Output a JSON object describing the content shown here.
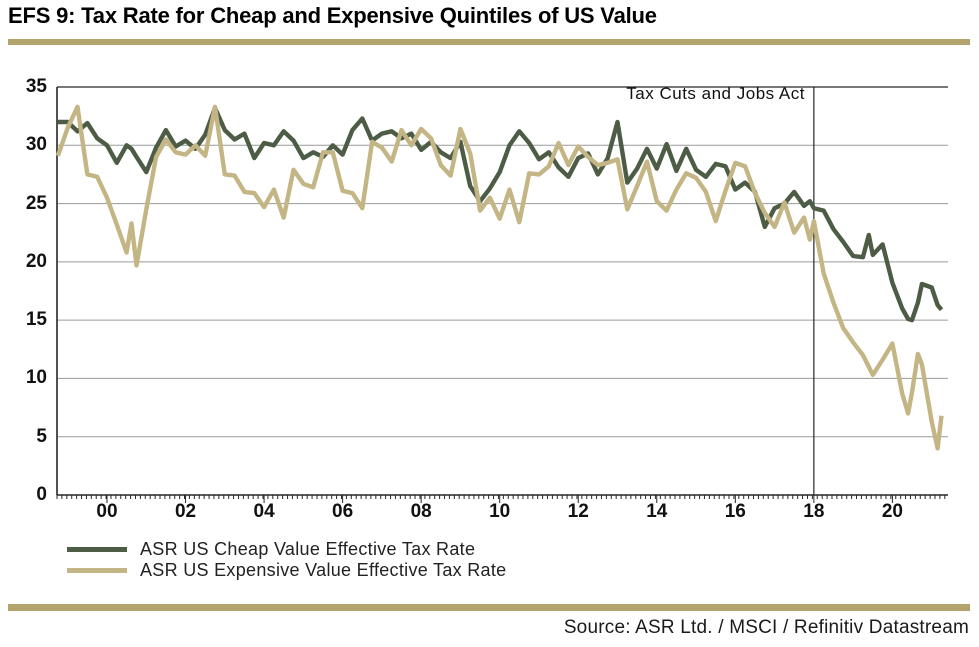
{
  "title": "EFS 9: Tax Rate for Cheap and Expensive Quintiles of US Value",
  "source_line": "Source: ASR Ltd. / MSCI / Refinitiv Datastream",
  "colors": {
    "cheap_line": "#4d5c45",
    "expensive_line": "#c4b585",
    "rule_gold": "#b3a36c",
    "grid": "#9a9a9a",
    "axis": "#262626"
  },
  "chart_data": {
    "type": "line",
    "title": "EFS 9: Tax Rate for Cheap and Expensive Quintiles of US Value",
    "xlabel": "",
    "ylabel": "",
    "ylim": [
      0,
      35
    ],
    "x_range": [
      1998.73,
      2021.45
    ],
    "grid": true,
    "legend_position": "bottom-left",
    "yticks": [
      0,
      5,
      10,
      15,
      20,
      25,
      30,
      35
    ],
    "xticks": [
      {
        "label": "00",
        "year": 2000
      },
      {
        "label": "02",
        "year": 2002
      },
      {
        "label": "04",
        "year": 2004
      },
      {
        "label": "06",
        "year": 2006
      },
      {
        "label": "08",
        "year": 2008
      },
      {
        "label": "10",
        "year": 2010
      },
      {
        "label": "12",
        "year": 2012
      },
      {
        "label": "14",
        "year": 2014
      },
      {
        "label": "16",
        "year": 2016
      },
      {
        "label": "18",
        "year": 2018
      },
      {
        "label": "20",
        "year": 2020
      }
    ],
    "annotation": {
      "label": "Tax Cuts and Jobs Act",
      "x": 2018
    },
    "x": [
      1998.75,
      1999.0,
      1999.25,
      1999.5,
      1999.75,
      2000.0,
      2000.25,
      2000.5,
      2000.625,
      2000.75,
      2001.0,
      2001.25,
      2001.5,
      2001.75,
      2002.0,
      2002.25,
      2002.5,
      2002.75,
      2003.0,
      2003.25,
      2003.5,
      2003.75,
      2004.0,
      2004.25,
      2004.5,
      2004.75,
      2005.0,
      2005.25,
      2005.5,
      2005.75,
      2006.0,
      2006.25,
      2006.5,
      2006.75,
      2007.0,
      2007.25,
      2007.5,
      2007.75,
      2008.0,
      2008.25,
      2008.5,
      2008.75,
      2009.0,
      2009.25,
      2009.5,
      2009.75,
      2010.0,
      2010.25,
      2010.5,
      2010.75,
      2011.0,
      2011.25,
      2011.5,
      2011.75,
      2012.0,
      2012.25,
      2012.5,
      2012.75,
      2013.0,
      2013.25,
      2013.5,
      2013.75,
      2014.0,
      2014.25,
      2014.5,
      2014.75,
      2015.0,
      2015.25,
      2015.5,
      2015.75,
      2016.0,
      2016.25,
      2016.5,
      2016.75,
      2017.0,
      2017.25,
      2017.5,
      2017.75,
      2017.9,
      2018.0,
      2018.25,
      2018.5,
      2018.75,
      2019.0,
      2019.25,
      2019.4,
      2019.5,
      2019.75,
      2020.0,
      2020.25,
      2020.4,
      2020.5,
      2020.65,
      2020.75,
      2021.0,
      2021.15,
      2021.25
    ],
    "series": [
      {
        "name": "ASR US Cheap Value Effective Tax Rate",
        "color": "#4d5c45",
        "values": [
          32.0,
          32.0,
          31.2,
          31.9,
          30.6,
          30.0,
          28.5,
          30.0,
          29.7,
          29.0,
          27.7,
          29.8,
          31.3,
          29.9,
          30.4,
          29.7,
          30.9,
          33.2,
          31.3,
          30.5,
          31.0,
          28.9,
          30.2,
          30.0,
          31.2,
          30.4,
          28.9,
          29.4,
          29.0,
          30.0,
          29.2,
          31.3,
          32.3,
          30.4,
          31.0,
          31.2,
          30.6,
          31.0,
          29.6,
          30.3,
          29.4,
          28.9,
          30.3,
          26.5,
          25.2,
          26.3,
          27.7,
          30.0,
          31.2,
          30.2,
          28.8,
          29.4,
          28.1,
          27.3,
          28.9,
          29.3,
          27.5,
          28.9,
          32.0,
          26.8,
          28.0,
          29.7,
          28.0,
          30.1,
          27.8,
          29.7,
          27.9,
          27.3,
          28.4,
          28.2,
          26.2,
          26.8,
          26.0,
          23.0,
          24.6,
          25.0,
          26.0,
          24.8,
          25.2,
          24.6,
          24.4,
          22.8,
          21.7,
          20.5,
          20.4,
          22.3,
          20.6,
          21.5,
          18.2,
          16.0,
          15.1,
          15.0,
          16.5,
          18.1,
          17.8,
          16.3,
          15.9
        ]
      },
      {
        "name": "ASR US Expensive Value Effective Tax Rate",
        "color": "#c4b585",
        "values": [
          29.1,
          31.5,
          33.3,
          27.5,
          27.3,
          25.5,
          23.2,
          20.8,
          23.3,
          19.7,
          24.5,
          29.0,
          30.5,
          29.4,
          29.2,
          30.0,
          29.1,
          33.3,
          27.5,
          27.4,
          26.0,
          25.9,
          24.7,
          26.2,
          23.8,
          27.9,
          26.7,
          26.4,
          29.4,
          29.4,
          26.1,
          25.9,
          24.6,
          30.3,
          29.8,
          28.6,
          31.3,
          30.0,
          31.4,
          30.6,
          28.3,
          27.4,
          31.4,
          29.3,
          24.4,
          25.5,
          23.7,
          26.2,
          23.4,
          27.6,
          27.5,
          28.2,
          30.2,
          28.3,
          29.9,
          29.0,
          28.3,
          28.5,
          28.8,
          24.5,
          26.5,
          28.6,
          25.2,
          24.4,
          26.2,
          27.6,
          27.2,
          26.0,
          23.5,
          26.1,
          28.5,
          28.2,
          25.9,
          24.2,
          23.0,
          25.1,
          22.5,
          23.8,
          21.9,
          23.5,
          19.0,
          16.5,
          14.3,
          13.1,
          12.0,
          11.0,
          10.3,
          11.6,
          13.0,
          8.7,
          7.0,
          8.8,
          12.1,
          11.2,
          6.3,
          4.0,
          6.8
        ]
      }
    ]
  }
}
